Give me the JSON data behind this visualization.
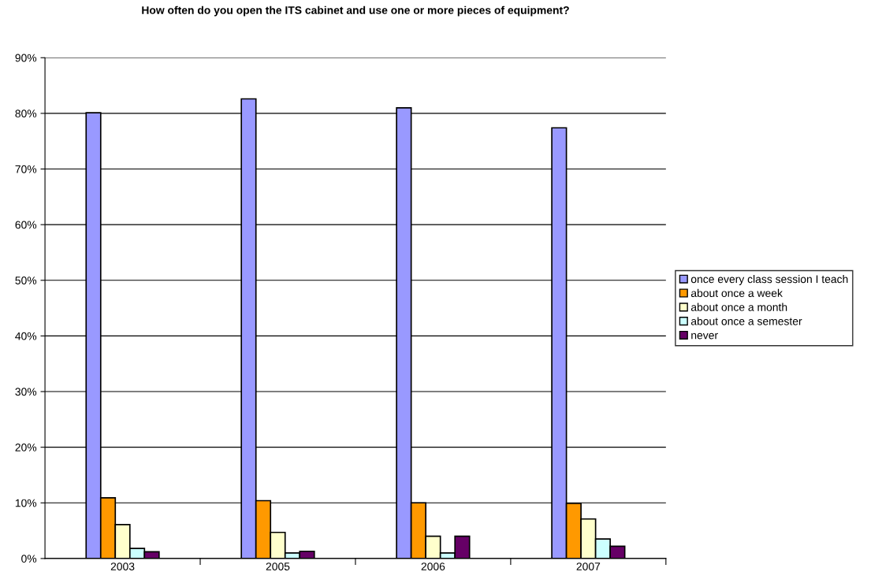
{
  "chart_data": {
    "type": "bar",
    "title": "How often do you open the ITS cabinet and use one or more pieces of equipment?",
    "categories": [
      "2003",
      "2005",
      "2006",
      "2007"
    ],
    "series": [
      {
        "name": "once every class session I teach",
        "color": "#9999ff",
        "values": [
          80.1,
          82.6,
          81.0,
          77.4
        ]
      },
      {
        "name": "about once a week",
        "color": "#ff9900",
        "values": [
          10.9,
          10.4,
          10.0,
          9.9
        ]
      },
      {
        "name": "about once a month",
        "color": "#ffffcc",
        "values": [
          6.1,
          4.7,
          4.0,
          7.1
        ]
      },
      {
        "name": "about once a semester",
        "color": "#ccffff",
        "values": [
          1.8,
          1.0,
          1.0,
          3.5
        ]
      },
      {
        "name": "never",
        "color": "#660066",
        "values": [
          1.2,
          1.3,
          4.0,
          2.2
        ]
      }
    ],
    "ylim": [
      0,
      90
    ],
    "yticks": [
      {
        "value": 0,
        "label": "0%"
      },
      {
        "value": 10,
        "label": "10%"
      },
      {
        "value": 20,
        "label": "20%"
      },
      {
        "value": 30,
        "label": "30%"
      },
      {
        "value": 40,
        "label": "40%"
      },
      {
        "value": 50,
        "label": "50%"
      },
      {
        "value": 60,
        "label": "60%"
      },
      {
        "value": 70,
        "label": "70%"
      },
      {
        "value": 80,
        "label": "80%"
      },
      {
        "value": 90,
        "label": "90%"
      }
    ],
    "grid": "y",
    "legend": "right"
  }
}
